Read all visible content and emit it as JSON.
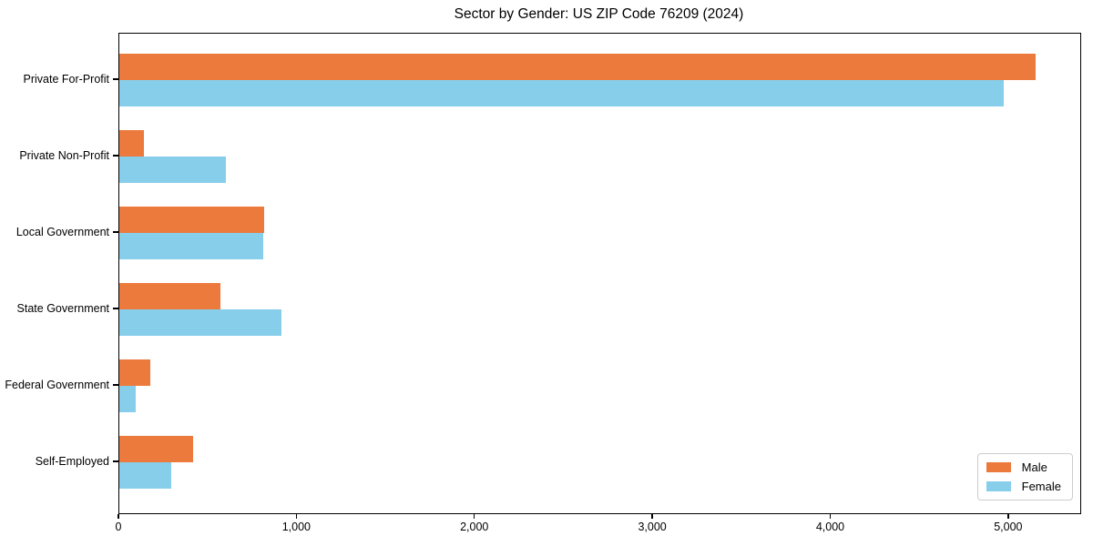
{
  "title": "Sector by Gender: US ZIP Code 76209 (2024)",
  "colors": {
    "male": "#EB7A3C",
    "female": "#87CEEB",
    "spine": "#000000",
    "legend_border": "#cccccc",
    "background": "#ffffff",
    "text": "#000000"
  },
  "chart_data": {
    "type": "bar",
    "orientation": "horizontal",
    "title": "Sector by Gender: US ZIP Code 76209 (2024)",
    "categories": [
      "Private For-Profit",
      "Private Non-Profit",
      "Local Government",
      "State Government",
      "Federal Government",
      "Self-Employed"
    ],
    "series": [
      {
        "name": "Male",
        "color": "#EB7A3C",
        "values": [
          5150,
          140,
          815,
          570,
          175,
          415
        ]
      },
      {
        "name": "Female",
        "color": "#87CEEB",
        "values": [
          4970,
          600,
          810,
          910,
          90,
          290
        ]
      }
    ],
    "xlabel": "",
    "ylabel": "",
    "xlim": [
      0,
      5400
    ],
    "xticks": [
      0,
      1000,
      2000,
      3000,
      4000,
      5000
    ],
    "xtick_labels": [
      "0",
      "1,000",
      "2,000",
      "3,000",
      "4,000",
      "5,000"
    ],
    "grid": false,
    "legend_position": "lower right"
  },
  "legend": {
    "items": [
      {
        "label": "Male"
      },
      {
        "label": "Female"
      }
    ]
  }
}
